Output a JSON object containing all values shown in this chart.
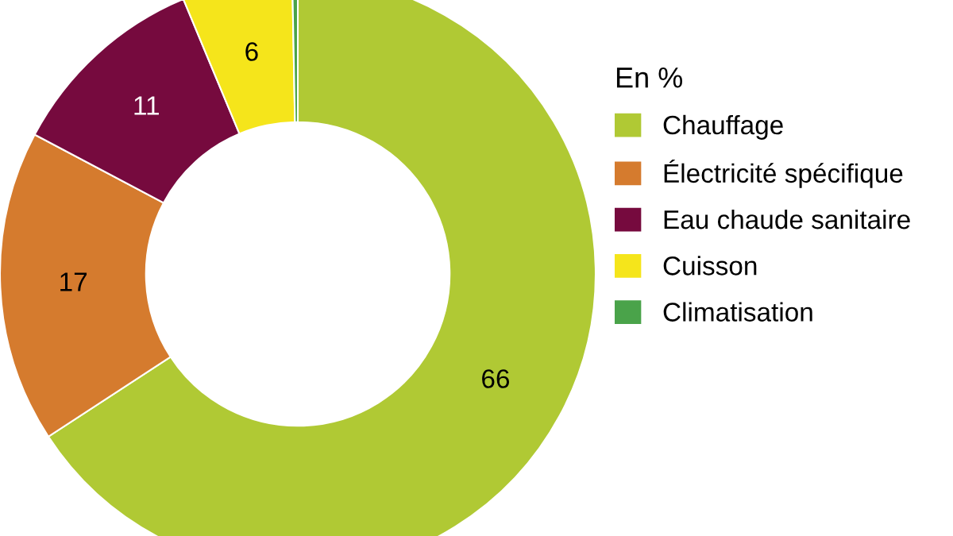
{
  "chart_data": {
    "type": "donut",
    "legend_title": "En %",
    "categories": [
      "Chauffage",
      "Électricité spécifique",
      "Eau chaude sanitaire",
      "Cuisson",
      "Climatisation"
    ],
    "values": [
      66,
      17,
      11,
      6,
      0.3
    ],
    "colors": [
      "#b0c934",
      "#d57b2e",
      "#760a3e",
      "#f5e51b",
      "#4aa34a"
    ],
    "value_labels": [
      "66",
      "17",
      "11",
      "6",
      null
    ],
    "legend": "right"
  }
}
